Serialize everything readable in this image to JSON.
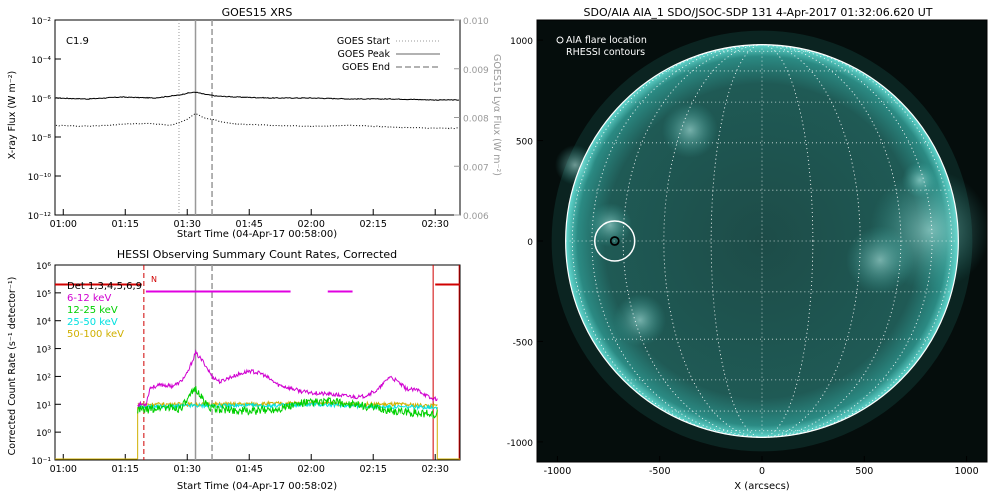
{
  "chart_data": [
    {
      "type": "line",
      "title": "GOES15 XRS",
      "annotation": "C1.9",
      "xlabel": "Start Time (04-Apr-17 00:58:00)",
      "ylabel": "X-ray Flux (W m⁻²)",
      "ylabel_right": "GOES15 Lyα Flux (W m⁻²)",
      "x_ticks": [
        "01:00",
        "01:15",
        "01:30",
        "01:45",
        "02:00",
        "02:15",
        "02:30"
      ],
      "y_ticks": [
        "10⁻¹²",
        "10⁻¹⁰",
        "10⁻⁸",
        "10⁻⁶",
        "10⁻⁴",
        "10⁻²"
      ],
      "y_ticks_right": [
        "0.006",
        "0.007",
        "0.008",
        "0.009",
        "0.010"
      ],
      "ylim_log_exp": [
        -12,
        -2
      ],
      "ylim_right": [
        0.006,
        0.01
      ],
      "xlim_minutes": [
        58,
        156
      ],
      "legend": [
        {
          "label": "GOES Start",
          "style": "dotted"
        },
        {
          "label": "GOES Peak",
          "style": "solid"
        },
        {
          "label": "GOES End",
          "style": "dashed"
        }
      ],
      "markers_minutes": {
        "start": 88,
        "peak": 92,
        "end": 96
      },
      "series": [
        {
          "name": "",
          "color": "#000000",
          "style": "solid",
          "x": [
            58,
            66,
            74,
            82,
            88,
            90,
            92,
            94,
            97,
            102,
            110,
            120,
            130,
            140,
            150,
            156
          ],
          "y_log": [
            -6.0,
            -6.05,
            -5.95,
            -6.0,
            -5.85,
            -5.75,
            -5.7,
            -5.8,
            -5.9,
            -5.95,
            -6.0,
            -6.0,
            -6.05,
            -6.05,
            -6.1,
            -6.1
          ]
        },
        {
          "name": "",
          "color": "#000000",
          "style": "dotted",
          "x": [
            58,
            66,
            74,
            80,
            86,
            90,
            92,
            94,
            100,
            104,
            110,
            120,
            130,
            140,
            150,
            156
          ],
          "y_log": [
            -7.4,
            -7.45,
            -7.35,
            -7.3,
            -7.4,
            -7.1,
            -6.8,
            -7.0,
            -7.3,
            -7.35,
            -7.4,
            -7.45,
            -7.4,
            -7.5,
            -7.55,
            -7.55
          ]
        }
      ]
    },
    {
      "type": "line",
      "title": "HESSI Observing Summary Count Rates, Corrected",
      "xlabel": "Start Time (04-Apr-17 00:58:02)",
      "ylabel": "Corrected Count Rate (s⁻¹ detector⁻¹)",
      "x_ticks": [
        "01:00",
        "01:15",
        "01:30",
        "01:45",
        "02:00",
        "02:15",
        "02:30"
      ],
      "y_ticks": [
        "10⁻¹",
        "10⁰",
        "10¹",
        "10²",
        "10³",
        "10⁴",
        "10⁵",
        "10⁶"
      ],
      "ylim_log_exp": [
        -1,
        6
      ],
      "xlim_minutes": [
        58,
        156
      ],
      "flag_label": "N",
      "legend_title": "Det 1,3,4,5,6,9",
      "series": [
        {
          "name": "6-12 keV",
          "color": "#d000d0",
          "x": [
            80,
            81,
            84,
            86,
            88,
            90,
            92,
            94,
            96,
            98,
            100,
            103,
            105,
            108,
            112,
            118,
            125,
            132,
            136,
            139,
            141,
            143,
            146,
            149
          ],
          "y_log": [
            1.0,
            1.6,
            1.7,
            1.65,
            1.75,
            2.1,
            2.85,
            2.5,
            2.0,
            1.8,
            1.95,
            2.1,
            2.2,
            2.1,
            1.7,
            1.45,
            1.35,
            1.25,
            1.5,
            2.0,
            1.8,
            1.55,
            1.5,
            1.2
          ]
        },
        {
          "name": "12-25 keV",
          "color": "#00d000",
          "x": [
            80,
            84,
            88,
            90,
            92,
            94,
            96,
            100,
            106,
            112,
            118,
            125,
            132,
            138,
            144,
            149
          ],
          "y_log": [
            0.8,
            0.9,
            0.85,
            1.1,
            1.6,
            1.1,
            0.85,
            0.8,
            0.75,
            0.85,
            1.05,
            1.1,
            0.95,
            0.8,
            0.7,
            0.65
          ]
        },
        {
          "name": "25-50 keV",
          "color": "#00e0e0",
          "x": [
            80,
            90,
            100,
            110,
            120,
            130,
            140,
            149
          ],
          "y_log": [
            0.9,
            0.95,
            0.95,
            0.95,
            1.0,
            0.95,
            0.9,
            0.9
          ]
        },
        {
          "name": "50-100 keV",
          "color": "#d0b000",
          "x": [
            80,
            90,
            100,
            110,
            120,
            130,
            140,
            149
          ],
          "y_log": [
            1.0,
            1.0,
            1.0,
            1.02,
            1.05,
            1.0,
            1.0,
            0.95
          ]
        }
      ],
      "top_bars": [
        {
          "color": "#d00000",
          "x0": 58,
          "x1": 79,
          "y_log": 5.3
        },
        {
          "color": "#e000e0",
          "x0": 80,
          "x1": 115,
          "y_log": 5.05
        },
        {
          "color": "#e000e0",
          "x0": 124,
          "x1": 130,
          "y_log": 5.05
        },
        {
          "color": "#d00000",
          "x0": 150,
          "x1": 156,
          "y_log": 5.3
        }
      ]
    },
    {
      "type": "heatmap",
      "title": "SDO/AIA AIA_1 SDO/JSOC-SDP 131   4-Apr-2017 01:32:06.620 UT",
      "xlabel": "X (arcsecs)",
      "ylabel": "",
      "x_ticks": [
        "-1000",
        "-500",
        "0",
        "500",
        "1000"
      ],
      "y_ticks": [
        "-1000",
        "-500",
        "0",
        "500",
        "1000"
      ],
      "xlim": [
        -1100,
        1100
      ],
      "ylim": [
        -1100,
        1100
      ],
      "legend": [
        {
          "label": "AIA flare location",
          "marker": "circle"
        },
        {
          "label": "RHESSI contours",
          "marker": ""
        }
      ],
      "flare_location_arcsec": [
        -720,
        0
      ],
      "solar_radius_arcsec": 960
    }
  ]
}
